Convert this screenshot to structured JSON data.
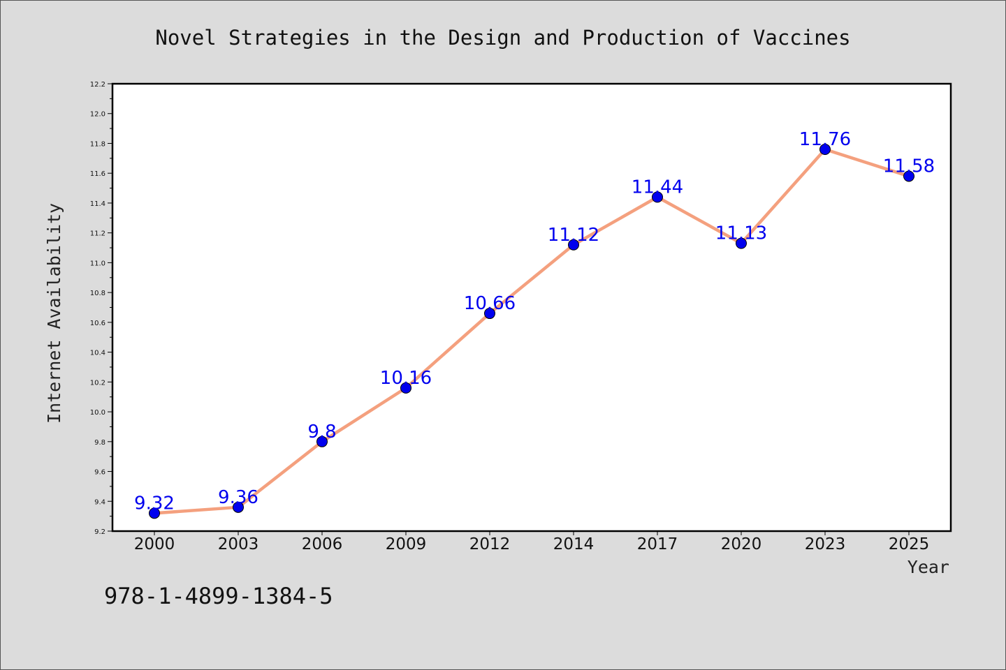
{
  "chart_data": {
    "type": "line",
    "title": "Novel Strategies in the Design and Production of Vaccines",
    "xlabel": "Year",
    "ylabel": "Internet Availability",
    "categories": [
      "2000",
      "2003",
      "2006",
      "2009",
      "2012",
      "2014",
      "2017",
      "2020",
      "2023",
      "2025"
    ],
    "series": [
      {
        "values": [
          9.32,
          9.36,
          9.8,
          10.16,
          10.66,
          11.12,
          11.44,
          11.13,
          11.76,
          11.58
        ],
        "labels": [
          "9.32",
          "9.36",
          "9.8",
          "10.16",
          "10.66",
          "11.12",
          "11.44",
          "11.13",
          "11.76",
          "11.58"
        ],
        "line_color": "#f4a07e",
        "marker_color": "#0000ee",
        "label_color": "#0000ee"
      }
    ],
    "ylim": [
      9.2,
      12.2
    ],
    "yticks": [
      "9.2",
      "9.4",
      "9.6",
      "9.8",
      "10.0",
      "10.2",
      "10.4",
      "10.6",
      "10.8",
      "11.0",
      "11.2",
      "11.4",
      "11.6",
      "11.8",
      "12.0",
      "12.2"
    ],
    "grid": false,
    "legend": "none"
  },
  "footer": {
    "isbn": "978-1-4899-1384-5"
  }
}
